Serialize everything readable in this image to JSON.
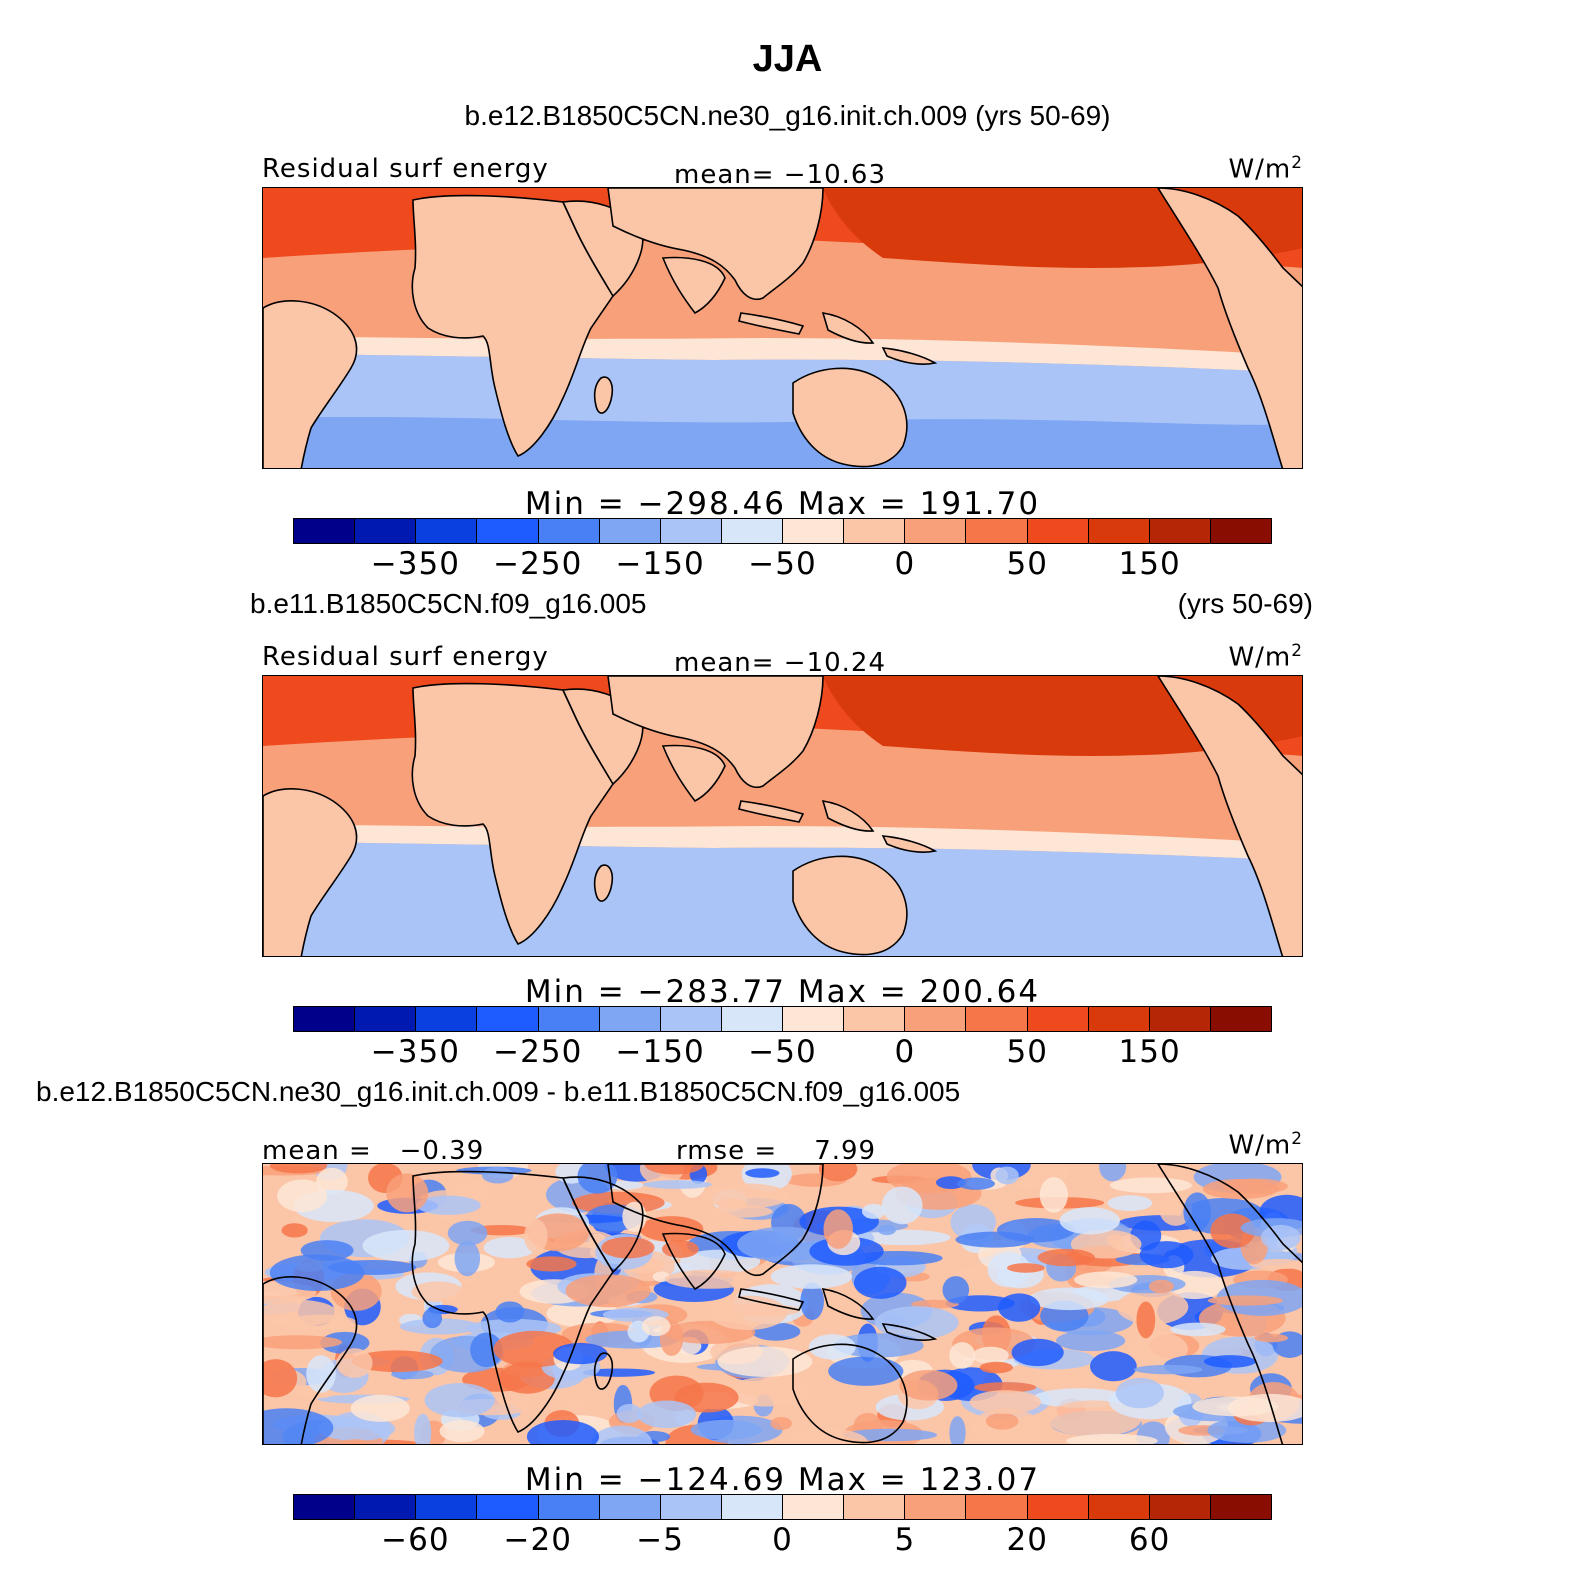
{
  "title": "JJA",
  "panels": [
    {
      "case": "b.e12.B1850C5CN.ne30_g16.init.ch.009 (yrs 50-69)",
      "case_years": "",
      "left": "Residual surf energy",
      "center": "mean= −10.63",
      "units": "W/m",
      "units_sup": "2",
      "minmax": "Min = −298.46 Max = 191.70",
      "ticks": [
        "−350",
        "−250",
        "−150",
        "−50",
        "0",
        "50",
        "150"
      ]
    },
    {
      "case": "b.e11.B1850C5CN.f09_g16.005",
      "case_years": "(yrs 50-69)",
      "left": "Residual surf energy",
      "center": "mean= −10.24",
      "units": "W/m",
      "units_sup": "2",
      "minmax": "Min = −283.77 Max = 200.64",
      "ticks": [
        "−350",
        "−250",
        "−150",
        "−50",
        "0",
        "50",
        "150"
      ]
    },
    {
      "case": "b.e12.B1850C5CN.ne30_g16.init.ch.009 - b.e11.B1850C5CN.f09_g16.005",
      "case_years": "",
      "left": "mean =   −0.39",
      "center": "rmse =    7.99",
      "units": "W/m",
      "units_sup": "2",
      "minmax": "Min = −124.69 Max = 123.07",
      "ticks": [
        "−60",
        "−20",
        "−5",
        "0",
        "5",
        "20",
        "60"
      ]
    }
  ],
  "colormap": [
    "#00008a",
    "#0019b0",
    "#0a3fe0",
    "#1f5cff",
    "#4a80f5",
    "#7fa6f3",
    "#abc4f7",
    "#d8e6fa",
    "#fde6d6",
    "#fbc5a8",
    "#f8a07a",
    "#f6764a",
    "#ee4a1e",
    "#d93a0c",
    "#b52607",
    "#8a0d02"
  ],
  "map_colors": {
    "ocean_north": "#ee4a1e",
    "ocean_tropic_band": "#f8a07a",
    "equator_cool": "#fde6d6",
    "ocean_south": "#abc4f7",
    "ocean_south_deep": "#7fa6f3",
    "land": "#fbc5a8",
    "land_warm": "#f8a07a",
    "pacific_core": "#d93a0c"
  }
}
